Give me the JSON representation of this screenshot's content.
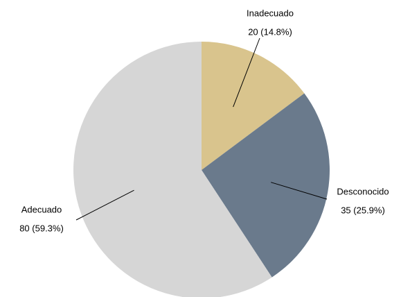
{
  "chart_data": {
    "type": "pie",
    "categories": [
      "Inadecuado",
      "Desconocido",
      "Adecuado"
    ],
    "values": [
      20,
      35,
      80
    ],
    "value_labels": [
      "20 (14.8%)",
      "35 (25.9%)",
      "80 (59.3%)"
    ],
    "colors": [
      "#d9c48d",
      "#6a7a8c",
      "#d6d6d6"
    ]
  }
}
